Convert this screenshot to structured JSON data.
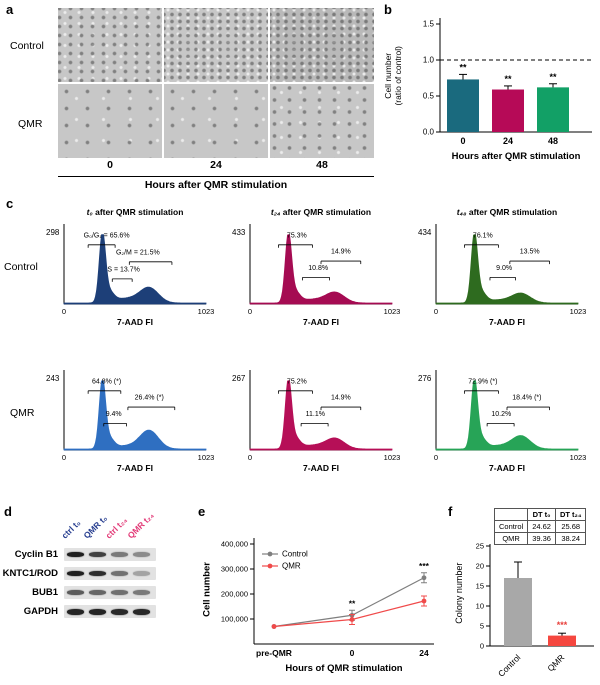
{
  "panels": {
    "a": {
      "label": "a",
      "rows": [
        "Control",
        "QMR"
      ],
      "cols": [
        "0",
        "24",
        "48"
      ],
      "x_title": "Hours after QMR stimulation"
    },
    "b": {
      "label": "b",
      "ylabel_line1": "Cell number",
      "ylabel_line2": "(ratio of control)"
    },
    "c": {
      "label": "c",
      "rows": [
        "Control",
        "QMR"
      ]
    },
    "d": {
      "label": "d",
      "lanes": [
        {
          "text": "ctrl t₀",
          "color": "#263d8f"
        },
        {
          "text": "QMR t₀",
          "color": "#263d8f"
        },
        {
          "text": "ctrl t₂₄",
          "color": "#e23a77"
        },
        {
          "text": "QMR t₂₄",
          "color": "#e23a77"
        }
      ],
      "proteins": [
        {
          "name": "Cyclin B1",
          "bands": [
            0.95,
            0.78,
            0.5,
            0.42
          ]
        },
        {
          "name": "KNTC1/ROD",
          "bands": [
            0.95,
            0.88,
            0.55,
            0.3
          ]
        },
        {
          "name": "BUB1",
          "bands": [
            0.65,
            0.6,
            0.55,
            0.5
          ]
        },
        {
          "name": "GAPDH",
          "bands": [
            0.92,
            0.92,
            0.9,
            0.9
          ]
        }
      ]
    },
    "e": {
      "label": "e",
      "ylabel": "Cell number"
    },
    "f": {
      "label": "f",
      "ylabel": "Colony number"
    }
  },
  "chart_data": [
    {
      "id": "b",
      "type": "bar",
      "categories": [
        "0",
        "24",
        "48"
      ],
      "values": [
        0.73,
        0.59,
        0.62
      ],
      "errors": [
        0.07,
        0.05,
        0.05
      ],
      "colors": [
        "#1a6a7e",
        "#b60a57",
        "#12a066"
      ],
      "significance": [
        "**",
        "**",
        "**"
      ],
      "ylabel": "Cell number (ratio of control)",
      "xlabel": "Hours after QMR stimulation",
      "ylim": [
        0,
        1.5
      ],
      "yticks": [
        0,
        0.5,
        1,
        1.5
      ],
      "reference_line": 1.0
    },
    {
      "id": "c",
      "type": "histogram-grid",
      "xlabel": "7-AAD FI",
      "xmin_label": "0",
      "xmax_label": "1023",
      "rows": [
        "Control",
        "QMR"
      ],
      "plots": [
        {
          "row": "Control",
          "title_var": "t₀",
          "title_rest": " after QMR stimulation",
          "ymax": 298,
          "color": "#1d3f78",
          "g0g1_pct": 65.6,
          "g2m_pct": 21.5,
          "s_pct": 13.7,
          "annotations": [
            {
              "label": "G₀/G₁ = 65.6%",
              "tx": 0.3,
              "ty": 0.1,
              "bx1": 0.17,
              "bx2": 0.36,
              "by": 0.2
            },
            {
              "label": "G₂/M = 21.5%",
              "tx": 0.52,
              "ty": 0.33,
              "bx1": 0.46,
              "bx2": 0.76,
              "by": 0.43
            },
            {
              "label": "S = 13.7%",
              "tx": 0.42,
              "ty": 0.56,
              "bx1": 0.34,
              "bx2": 0.48,
              "by": 0.66
            }
          ]
        },
        {
          "row": "Control",
          "title_var": "t₂₄",
          "title_rest": " after QMR stimulation",
          "ymax": 433,
          "color": "#a50b52",
          "g0g1_pct": 75.3,
          "g2m_pct": 14.9,
          "s_pct": 10.8,
          "annotations": [
            {
              "label": "75.3%",
              "tx": 0.33,
              "ty": 0.1,
              "bx1": 0.2,
              "bx2": 0.44,
              "by": 0.2
            },
            {
              "label": "14.9%",
              "tx": 0.64,
              "ty": 0.32,
              "bx1": 0.5,
              "bx2": 0.78,
              "by": 0.42
            },
            {
              "label": "10.8%",
              "tx": 0.48,
              "ty": 0.54,
              "bx1": 0.37,
              "bx2": 0.56,
              "by": 0.64
            }
          ]
        },
        {
          "row": "Control",
          "title_var": "t₄₈",
          "title_rest": " after QMR stimulation",
          "ymax": 434,
          "color": "#2e6b1f",
          "g0g1_pct": 76.1,
          "g2m_pct": 13.5,
          "s_pct": 9.0,
          "annotations": [
            {
              "label": "76.1%",
              "tx": 0.33,
              "ty": 0.1,
              "bx1": 0.2,
              "bx2": 0.44,
              "by": 0.2
            },
            {
              "label": "13.5%",
              "tx": 0.66,
              "ty": 0.32,
              "bx1": 0.52,
              "bx2": 0.8,
              "by": 0.42
            },
            {
              "label": "9.0%",
              "tx": 0.48,
              "ty": 0.54,
              "bx1": 0.38,
              "bx2": 0.56,
              "by": 0.64
            }
          ]
        },
        {
          "row": "QMR",
          "ymax": 243,
          "color": "#2f6fc1",
          "g0g1_pct": 64.8,
          "g2m_pct": 26.4,
          "s_pct": 9.4,
          "annotations": [
            {
              "label": "64.8% (*)",
              "tx": 0.3,
              "ty": 0.1,
              "bx1": 0.17,
              "bx2": 0.4,
              "by": 0.2
            },
            {
              "label": "26.4% (*)",
              "tx": 0.6,
              "ty": 0.32,
              "bx1": 0.45,
              "bx2": 0.78,
              "by": 0.42
            },
            {
              "label": "9.4%",
              "tx": 0.35,
              "ty": 0.54,
              "bx1": 0.28,
              "bx2": 0.44,
              "by": 0.64
            }
          ]
        },
        {
          "row": "QMR",
          "ymax": 267,
          "color": "#b60f57",
          "g0g1_pct": 75.2,
          "g2m_pct": 14.9,
          "s_pct": 11.1,
          "annotations": [
            {
              "label": "75.2%",
              "tx": 0.33,
              "ty": 0.1,
              "bx1": 0.2,
              "bx2": 0.44,
              "by": 0.2
            },
            {
              "label": "14.9%",
              "tx": 0.64,
              "ty": 0.32,
              "bx1": 0.5,
              "bx2": 0.78,
              "by": 0.42
            },
            {
              "label": "11.1%",
              "tx": 0.46,
              "ty": 0.54,
              "bx1": 0.36,
              "bx2": 0.55,
              "by": 0.64
            }
          ]
        },
        {
          "row": "QMR",
          "ymax": 276,
          "color": "#27a457",
          "g0g1_pct": 72.9,
          "g2m_pct": 18.4,
          "s_pct": 10.2,
          "annotations": [
            {
              "label": "72.9% (*)",
              "tx": 0.33,
              "ty": 0.1,
              "bx1": 0.2,
              "bx2": 0.44,
              "by": 0.2
            },
            {
              "label": "18.4% (*)",
              "tx": 0.64,
              "ty": 0.32,
              "bx1": 0.5,
              "bx2": 0.8,
              "by": 0.42
            },
            {
              "label": "10.2%",
              "tx": 0.46,
              "ty": 0.54,
              "bx1": 0.36,
              "bx2": 0.55,
              "by": 0.64
            }
          ]
        }
      ]
    },
    {
      "id": "e",
      "type": "line",
      "categories": [
        "pre-QMR",
        "0",
        "24"
      ],
      "series": [
        {
          "name": "Control",
          "color": "#7f7f7f",
          "values": [
            70000,
            115000,
            265000
          ]
        },
        {
          "name": "QMR",
          "color": "#f04a4a",
          "values": [
            70000,
            98000,
            172000
          ]
        }
      ],
      "ylim": [
        0,
        400000
      ],
      "yticks": [
        100000,
        200000,
        300000,
        400000
      ],
      "ytick_labels": [
        "100,000",
        "200,000",
        "300,000",
        "400,000"
      ],
      "significance": [
        {
          "index": 1,
          "label": "**"
        },
        {
          "index": 2,
          "label": "***"
        }
      ],
      "xlabel": "Hours of QMR stimulation",
      "ylabel": "Cell number",
      "table": {
        "corner": "",
        "col_headers": [
          "DT t₀",
          "DT t₂₄"
        ],
        "rows": [
          {
            "name": "Control",
            "values": [
              "24.62",
              "25.68"
            ]
          },
          {
            "name": "QMR",
            "values": [
              "39.36",
              "38.24"
            ]
          }
        ]
      }
    },
    {
      "id": "f",
      "type": "bar",
      "categories": [
        "Control",
        "QMR"
      ],
      "values": [
        17,
        2.6
      ],
      "errors": [
        4,
        0.6
      ],
      "colors": [
        "#a8a8a8",
        "#f5473f"
      ],
      "significance": [
        "",
        "***"
      ],
      "sig_color": "#e8413c",
      "ylabel": "Colony number",
      "ylim": [
        0,
        25
      ],
      "yticks": [
        0,
        5,
        10,
        15,
        20,
        25
      ]
    }
  ]
}
